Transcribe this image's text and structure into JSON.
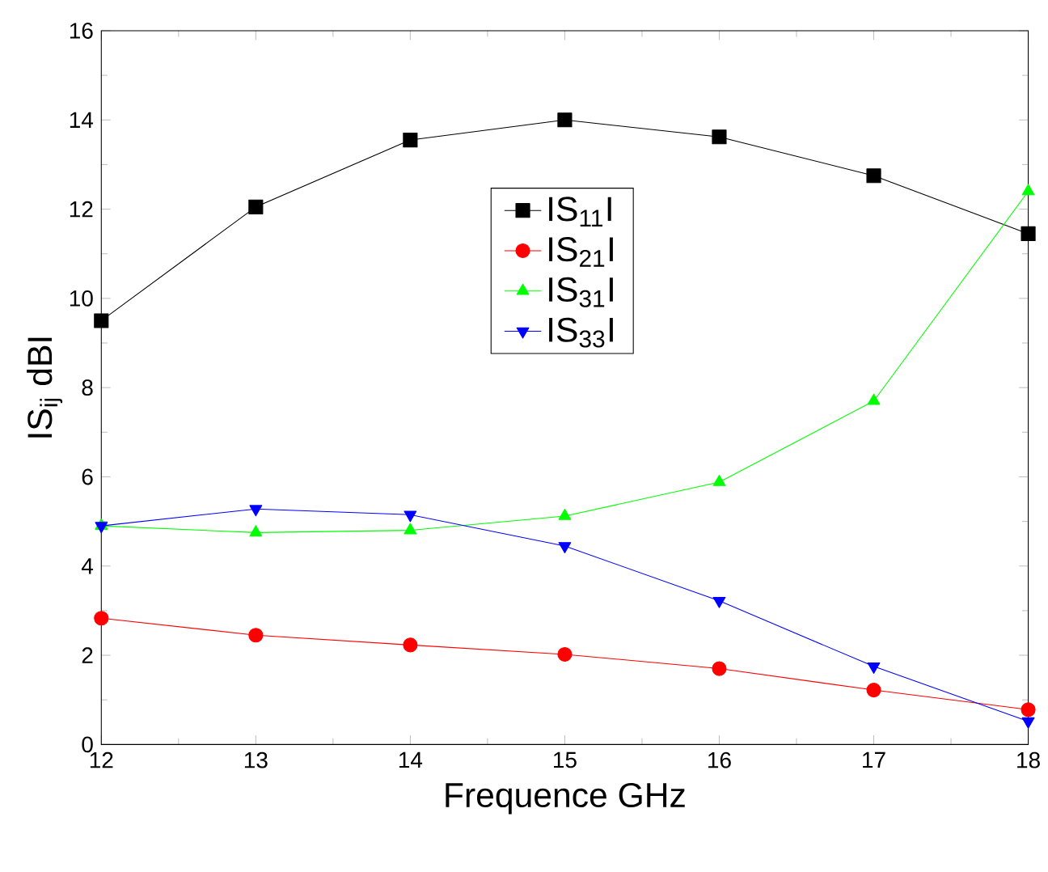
{
  "chart_data": {
    "type": "line",
    "xlabel": "Frequence GHz",
    "ylabel": "IS$_{ij}$ dBI",
    "x": [
      12,
      13,
      14,
      15,
      16,
      17,
      18
    ],
    "xlim": [
      12,
      18
    ],
    "xticks": [
      12,
      13,
      14,
      15,
      16,
      17,
      18
    ],
    "ylim": [
      0,
      16
    ],
    "yticks": [
      0,
      2,
      4,
      6,
      8,
      10,
      12,
      14,
      16
    ],
    "legend": "top",
    "grid": false,
    "series": [
      {
        "name": "IS$_{11}$I",
        "color": "#000000",
        "marker": "square",
        "values": [
          9.5,
          12.05,
          13.55,
          14.0,
          13.62,
          12.75,
          11.45
        ]
      },
      {
        "name": "IS$_{21}$I",
        "color": "#ff0000",
        "marker": "circle",
        "values": [
          2.83,
          2.45,
          2.23,
          2.02,
          1.7,
          1.22,
          0.78
        ]
      },
      {
        "name": "IS$_{31}$I",
        "color": "#00ff00",
        "marker": "triangle",
        "values": [
          4.9,
          4.75,
          4.8,
          5.12,
          5.88,
          7.7,
          12.4
        ]
      },
      {
        "name": "IS$_{33}$I",
        "color": "#0000ff",
        "marker": "triangle-down",
        "values": [
          4.9,
          5.28,
          5.15,
          4.45,
          3.22,
          1.75,
          0.52
        ]
      }
    ]
  }
}
